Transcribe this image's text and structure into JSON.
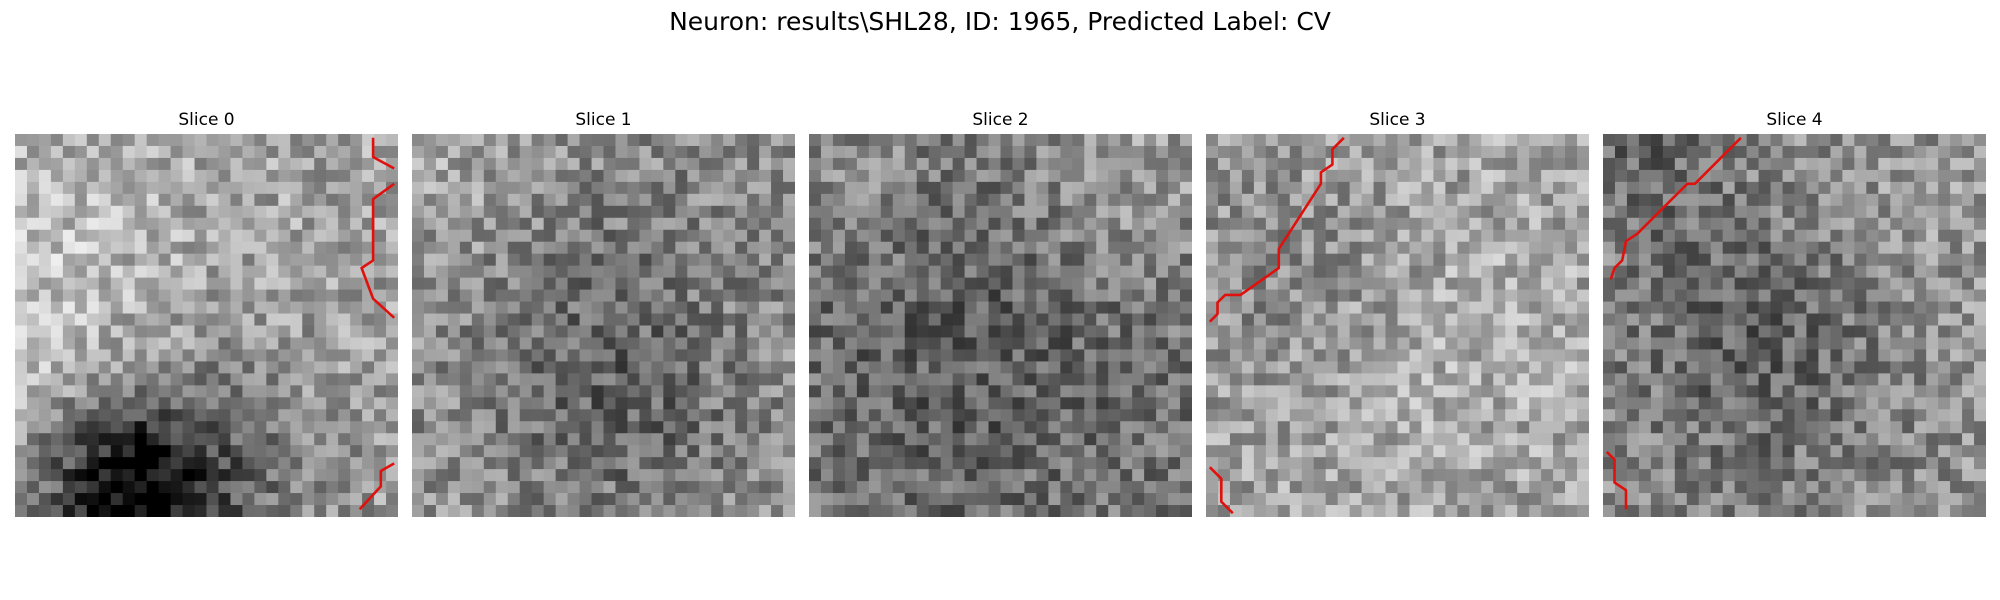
{
  "figure": {
    "title": "Neuron: results\\SHL28, ID: 1965, Predicted Label: CV"
  },
  "contour_color": "#e0110d",
  "panels": [
    {
      "title": "Slice 0",
      "seed": 11,
      "base": 0.64,
      "blobs": [
        [
          0.3,
          0.93,
          0.16,
          -0.55
        ],
        [
          0.0,
          0.45,
          0.3,
          0.14
        ],
        [
          0.5,
          0.9,
          0.25,
          -0.2
        ]
      ],
      "contours": [
        [
          [
            0.935,
            0.01
          ],
          [
            0.935,
            0.06
          ],
          [
            0.99,
            0.09
          ]
        ],
        [
          [
            0.99,
            0.13
          ],
          [
            0.935,
            0.17
          ],
          [
            0.935,
            0.33
          ],
          [
            0.905,
            0.35
          ],
          [
            0.935,
            0.43
          ],
          [
            0.99,
            0.48
          ]
        ],
        [
          [
            0.9,
            0.98
          ],
          [
            0.955,
            0.92
          ],
          [
            0.955,
            0.88
          ],
          [
            0.99,
            0.86
          ]
        ]
      ]
    },
    {
      "title": "Slice 1",
      "seed": 23,
      "base": 0.58,
      "blobs": [
        [
          0.5,
          0.45,
          0.3,
          -0.12
        ],
        [
          0.55,
          0.75,
          0.2,
          -0.12
        ],
        [
          0.1,
          0.1,
          0.2,
          0.08
        ]
      ],
      "contours": []
    },
    {
      "title": "Slice 2",
      "seed": 37,
      "base": 0.48,
      "blobs": [
        [
          0.4,
          0.55,
          0.35,
          -0.12
        ],
        [
          0.85,
          0.1,
          0.2,
          0.15
        ],
        [
          0.1,
          0.1,
          0.2,
          0.1
        ]
      ],
      "contours": []
    },
    {
      "title": "Slice 3",
      "seed": 51,
      "base": 0.63,
      "blobs": [
        [
          0.2,
          0.35,
          0.2,
          -0.1
        ],
        [
          0.7,
          0.55,
          0.3,
          0.05
        ]
      ],
      "contours": [
        [
          [
            0.36,
            0.01
          ],
          [
            0.33,
            0.04
          ],
          [
            0.33,
            0.08
          ],
          [
            0.3,
            0.1
          ],
          [
            0.3,
            0.13
          ],
          [
            0.19,
            0.3
          ],
          [
            0.19,
            0.35
          ],
          [
            0.09,
            0.42
          ],
          [
            0.05,
            0.42
          ],
          [
            0.03,
            0.44
          ],
          [
            0.03,
            0.47
          ],
          [
            0.01,
            0.49
          ]
        ],
        [
          [
            0.01,
            0.87
          ],
          [
            0.04,
            0.9
          ],
          [
            0.04,
            0.96
          ],
          [
            0.07,
            0.99
          ]
        ]
      ]
    },
    {
      "title": "Slice 4",
      "seed": 67,
      "base": 0.58,
      "blobs": [
        [
          0.4,
          0.55,
          0.28,
          -0.2
        ],
        [
          0.1,
          0.05,
          0.15,
          -0.15
        ],
        [
          0.8,
          0.3,
          0.2,
          0.05
        ]
      ],
      "contours": [
        [
          [
            0.36,
            0.01
          ],
          [
            0.24,
            0.13
          ],
          [
            0.22,
            0.13
          ],
          [
            0.14,
            0.21
          ],
          [
            0.09,
            0.26
          ],
          [
            0.06,
            0.28
          ],
          [
            0.05,
            0.33
          ],
          [
            0.03,
            0.35
          ],
          [
            0.02,
            0.38
          ]
        ],
        [
          [
            0.01,
            0.83
          ],
          [
            0.03,
            0.85
          ],
          [
            0.03,
            0.91
          ],
          [
            0.06,
            0.93
          ],
          [
            0.06,
            0.98
          ]
        ]
      ]
    }
  ]
}
